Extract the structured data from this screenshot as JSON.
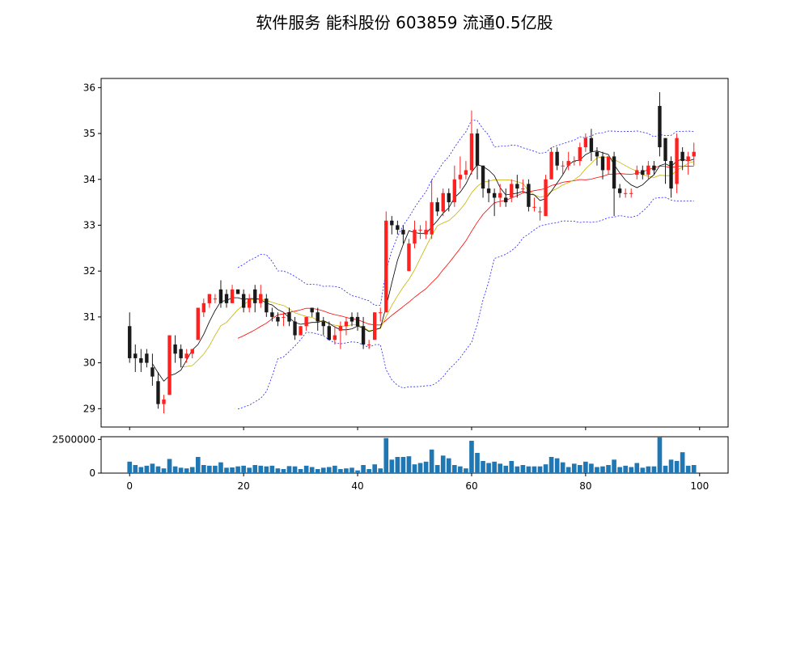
{
  "chart_data": {
    "type": "candlestick",
    "title": "软件服务 能科股份 603859 流通0.5亿股",
    "x_ticks": [
      0,
      20,
      40,
      60,
      80,
      100
    ],
    "price_ticks": [
      29,
      30,
      31,
      32,
      33,
      34,
      35,
      36
    ],
    "price_ylim": [
      28.6,
      36.2
    ],
    "volume_ticks": [
      0,
      2500000
    ],
    "volume_ylim": [
      0,
      2700000
    ],
    "xlim": [
      -5,
      105
    ],
    "colors": {
      "up": "#ff2020",
      "down": "#1a1a1a",
      "ma5": "#000000",
      "ma10": "#c8b400",
      "ma20": "#ff0000",
      "bands": "#2020ff",
      "volume": "#1f77b4"
    },
    "candles": [
      [
        30.8,
        30.1,
        31.1,
        30.0,
        850000
      ],
      [
        30.2,
        30.1,
        30.4,
        29.8,
        600000
      ],
      [
        30.1,
        30.0,
        30.3,
        29.8,
        450000
      ],
      [
        30.2,
        30.0,
        30.3,
        29.9,
        550000
      ],
      [
        29.9,
        29.7,
        30.2,
        29.5,
        700000
      ],
      [
        29.6,
        29.1,
        29.8,
        29.0,
        500000
      ],
      [
        29.1,
        29.2,
        29.3,
        28.9,
        350000
      ],
      [
        29.3,
        30.6,
        30.6,
        29.3,
        1050000
      ],
      [
        30.4,
        30.2,
        30.6,
        30.0,
        500000
      ],
      [
        30.3,
        30.1,
        30.4,
        29.9,
        400000
      ],
      [
        30.1,
        30.2,
        30.3,
        30.0,
        350000
      ],
      [
        30.2,
        30.3,
        30.3,
        30.1,
        450000
      ],
      [
        30.5,
        31.2,
        31.2,
        30.5,
        1200000
      ],
      [
        31.1,
        31.3,
        31.4,
        31.0,
        600000
      ],
      [
        31.3,
        31.5,
        31.5,
        31.2,
        550000
      ],
      [
        31.4,
        31.4,
        31.5,
        31.3,
        550000
      ],
      [
        31.6,
        31.3,
        31.8,
        31.2,
        800000
      ],
      [
        31.5,
        31.3,
        31.6,
        31.2,
        400000
      ],
      [
        31.3,
        31.6,
        31.7,
        31.3,
        420000
      ],
      [
        31.6,
        31.5,
        31.6,
        31.5,
        500000
      ],
      [
        31.5,
        31.2,
        31.6,
        31.1,
        550000
      ],
      [
        31.2,
        31.4,
        31.5,
        31.1,
        400000
      ],
      [
        31.6,
        31.3,
        31.7,
        31.1,
        600000
      ],
      [
        31.3,
        31.5,
        31.7,
        31.2,
        550000
      ],
      [
        31.4,
        31.1,
        31.5,
        31.0,
        500000
      ],
      [
        31.1,
        31.0,
        31.2,
        30.9,
        550000
      ],
      [
        31.0,
        30.9,
        31.1,
        30.8,
        350000
      ],
      [
        31.0,
        31.0,
        31.1,
        30.8,
        300000
      ],
      [
        31.1,
        30.9,
        31.2,
        30.8,
        520000
      ],
      [
        30.9,
        30.6,
        31.0,
        30.5,
        500000
      ],
      [
        30.6,
        30.8,
        30.8,
        30.6,
        300000
      ],
      [
        30.8,
        31.0,
        31.0,
        30.7,
        550000
      ],
      [
        31.2,
        31.1,
        31.2,
        31.0,
        450000
      ],
      [
        31.1,
        30.9,
        31.2,
        30.7,
        300000
      ],
      [
        30.9,
        30.8,
        31.0,
        30.6,
        400000
      ],
      [
        30.8,
        30.5,
        30.9,
        30.5,
        450000
      ],
      [
        30.5,
        30.6,
        30.8,
        30.4,
        550000
      ],
      [
        30.7,
        30.8,
        30.9,
        30.3,
        300000
      ],
      [
        30.8,
        30.9,
        31.0,
        30.6,
        350000
      ],
      [
        31.0,
        30.9,
        31.1,
        30.8,
        400000
      ],
      [
        31.0,
        30.8,
        31.1,
        30.7,
        200000
      ],
      [
        30.8,
        30.4,
        31.0,
        30.3,
        600000
      ],
      [
        30.4,
        30.4,
        30.5,
        30.3,
        300000
      ],
      [
        30.5,
        31.1,
        31.1,
        30.5,
        650000
      ],
      [
        31.1,
        31.1,
        31.2,
        30.9,
        350000
      ],
      [
        31.1,
        33.1,
        33.3,
        31.1,
        2600000
      ],
      [
        33.1,
        33.0,
        33.2,
        32.8,
        1000000
      ],
      [
        33.0,
        32.9,
        33.1,
        32.8,
        1200000
      ],
      [
        32.9,
        32.8,
        33.0,
        32.6,
        1200000
      ],
      [
        32.0,
        32.6,
        32.7,
        32.0,
        1250000
      ],
      [
        32.6,
        32.9,
        33.1,
        32.5,
        650000
      ],
      [
        32.9,
        32.9,
        33.0,
        32.7,
        750000
      ],
      [
        32.8,
        32.9,
        33.1,
        32.7,
        850000
      ],
      [
        32.8,
        33.5,
        34.0,
        32.7,
        1750000
      ],
      [
        33.5,
        33.3,
        33.6,
        33.2,
        600000
      ],
      [
        33.3,
        33.7,
        33.8,
        33.2,
        1300000
      ],
      [
        33.7,
        33.5,
        33.8,
        33.3,
        1100000
      ],
      [
        33.5,
        34.0,
        34.3,
        33.4,
        600000
      ],
      [
        34.0,
        34.1,
        34.5,
        33.8,
        500000
      ],
      [
        34.1,
        34.2,
        34.4,
        34.0,
        350000
      ],
      [
        34.2,
        35.0,
        35.5,
        34.1,
        2400000
      ],
      [
        35.0,
        34.3,
        35.1,
        34.0,
        1500000
      ],
      [
        34.3,
        33.8,
        34.3,
        33.6,
        900000
      ],
      [
        33.8,
        33.7,
        34.0,
        33.5,
        750000
      ],
      [
        33.7,
        33.6,
        33.8,
        33.2,
        850000
      ],
      [
        33.6,
        33.7,
        33.9,
        33.4,
        700000
      ],
      [
        33.6,
        33.5,
        33.8,
        33.4,
        550000
      ],
      [
        33.6,
        33.9,
        34.0,
        33.5,
        900000
      ],
      [
        33.9,
        33.8,
        34.1,
        33.6,
        500000
      ],
      [
        33.8,
        33.8,
        34.0,
        33.7,
        600000
      ],
      [
        33.9,
        33.4,
        34.0,
        33.3,
        500000
      ],
      [
        33.4,
        33.4,
        33.6,
        33.3,
        500000
      ],
      [
        33.3,
        33.3,
        33.4,
        33.1,
        500000
      ],
      [
        33.2,
        34.0,
        34.1,
        33.2,
        650000
      ],
      [
        34.0,
        34.6,
        34.7,
        34.0,
        1200000
      ],
      [
        34.6,
        34.3,
        34.7,
        34.2,
        1100000
      ],
      [
        34.3,
        34.3,
        34.4,
        34.1,
        800000
      ],
      [
        34.3,
        34.4,
        34.6,
        34.2,
        450000
      ],
      [
        34.4,
        34.4,
        34.5,
        34.3,
        700000
      ],
      [
        34.4,
        34.7,
        34.8,
        34.3,
        600000
      ],
      [
        34.7,
        34.9,
        35.0,
        34.6,
        850000
      ],
      [
        34.9,
        34.6,
        35.1,
        34.4,
        700000
      ],
      [
        34.6,
        34.5,
        34.7,
        34.3,
        450000
      ],
      [
        34.5,
        34.2,
        34.6,
        34.0,
        500000
      ],
      [
        34.2,
        34.5,
        34.5,
        34.1,
        600000
      ],
      [
        34.5,
        33.8,
        34.6,
        33.2,
        1000000
      ],
      [
        33.8,
        33.7,
        33.9,
        33.6,
        450000
      ],
      [
        33.7,
        33.7,
        33.8,
        33.6,
        550000
      ],
      [
        33.7,
        33.7,
        33.8,
        33.6,
        450000
      ],
      [
        34.1,
        34.2,
        34.3,
        34.0,
        750000
      ],
      [
        34.2,
        34.1,
        34.3,
        34.0,
        400000
      ],
      [
        34.1,
        34.3,
        34.4,
        34.0,
        500000
      ],
      [
        34.3,
        34.2,
        34.4,
        34.1,
        500000
      ],
      [
        35.6,
        34.7,
        35.9,
        34.5,
        2650000
      ],
      [
        34.9,
        34.4,
        34.9,
        33.9,
        550000
      ],
      [
        34.4,
        33.8,
        34.5,
        33.6,
        1000000
      ],
      [
        33.9,
        34.9,
        35.0,
        33.7,
        900000
      ],
      [
        34.6,
        34.4,
        34.7,
        34.2,
        1550000
      ],
      [
        34.4,
        34.5,
        34.6,
        34.1,
        550000
      ],
      [
        34.5,
        34.6,
        34.8,
        34.3,
        600000
      ]
    ]
  }
}
